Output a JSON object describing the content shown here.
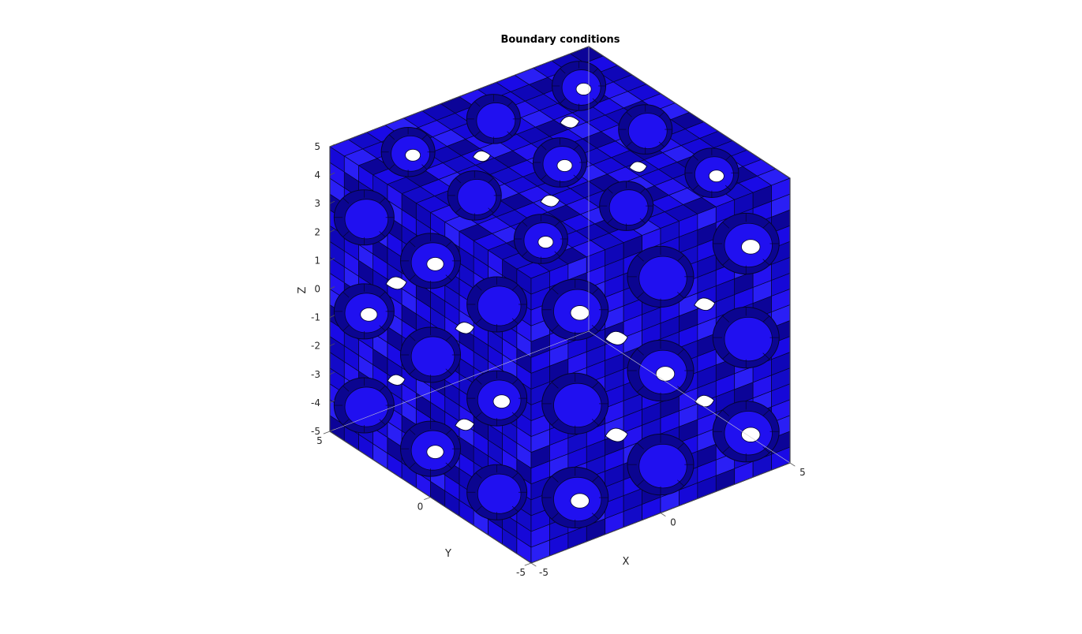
{
  "figure": {
    "title": "Boundary conditions",
    "x_axis": {
      "label": "X",
      "ticks": [
        "-5",
        "0",
        "5"
      ]
    },
    "y_axis": {
      "label": "Y",
      "ticks": [
        "-5",
        "0",
        "5"
      ]
    },
    "z_axis": {
      "label": "Z",
      "ticks": [
        "-5",
        "-4",
        "-3",
        "-2",
        "-1",
        "0",
        "1",
        "2",
        "3",
        "4",
        "5"
      ]
    },
    "mesh_color": "#1a0ae0",
    "mesh_dark_color": "#0e0590",
    "mesh_edge_color": "#050530",
    "box_color": "#555555",
    "grid_color": "#e6e6e6",
    "background": "#ffffff"
  }
}
